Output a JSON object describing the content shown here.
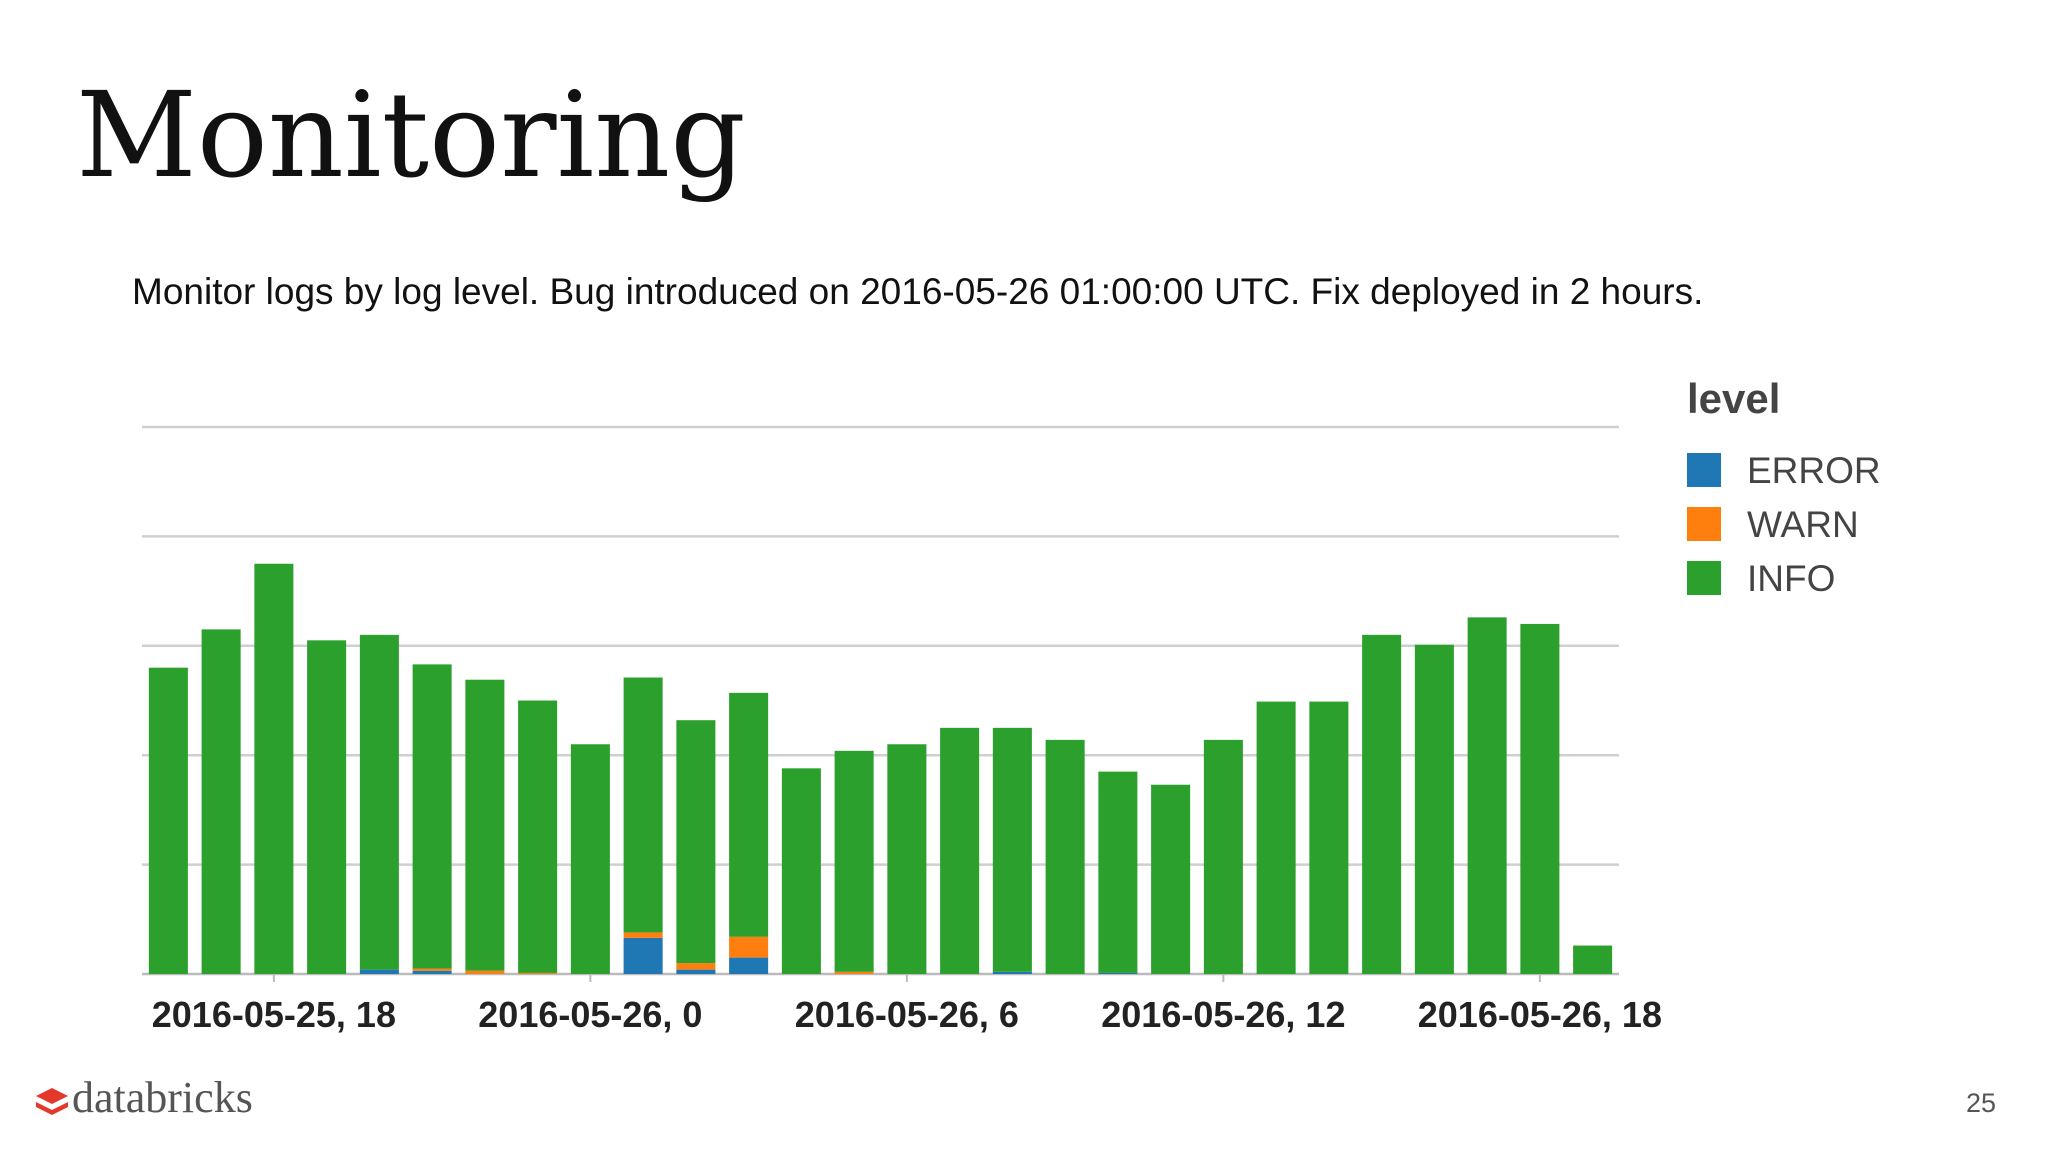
{
  "title": "Monitoring",
  "subtitle": "Monitor logs by log level. Bug introduced on 2016-05-26 01:00:00 UTC. Fix deployed in 2 hours.",
  "footer": {
    "logo": "databricks",
    "page_number": "25"
  },
  "chart_data": {
    "type": "stacked_bar",
    "legend_title": "level",
    "legend": "right",
    "categories": [
      null,
      null,
      "2016-05-25, 18",
      null,
      null,
      null,
      null,
      null,
      "2016-05-26, 0",
      null,
      null,
      null,
      null,
      null,
      "2016-05-26, 6",
      null,
      null,
      null,
      null,
      null,
      "2016-05-26, 12",
      null,
      null,
      null,
      null,
      null,
      "2016-05-26, 18",
      null
    ],
    "series": [
      {
        "name": "ERROR",
        "color": "#1f77b4",
        "values": [
          0,
          0,
          0,
          0,
          0.04,
          0.03,
          0,
          0,
          0,
          0.33,
          0.04,
          0.15,
          0,
          0,
          0,
          0,
          0.02,
          0,
          0.01,
          0,
          0,
          0,
          0,
          0,
          0,
          0,
          0,
          0
        ]
      },
      {
        "name": "WARN",
        "color": "#ff7f0e",
        "values": [
          0,
          0,
          0,
          0,
          0,
          0.02,
          0.03,
          0.01,
          0,
          0.05,
          0.06,
          0.19,
          0,
          0.02,
          0,
          0,
          0,
          0,
          0,
          0,
          0,
          0,
          0,
          0,
          0,
          0,
          0,
          0
        ]
      },
      {
        "name": "INFO",
        "color": "#2ca02c",
        "values": [
          2.8,
          3.15,
          3.75,
          3.05,
          3.06,
          2.78,
          2.66,
          2.49,
          2.1,
          2.33,
          2.22,
          2.23,
          1.88,
          2.02,
          2.1,
          2.25,
          2.23,
          2.14,
          1.84,
          1.73,
          2.14,
          2.49,
          2.49,
          3.1,
          3.01,
          3.26,
          3.2,
          0.26
        ]
      }
    ],
    "ylim": [
      0,
      5
    ],
    "gridlines": [
      1,
      2,
      3,
      4,
      5
    ],
    "grid": true
  }
}
